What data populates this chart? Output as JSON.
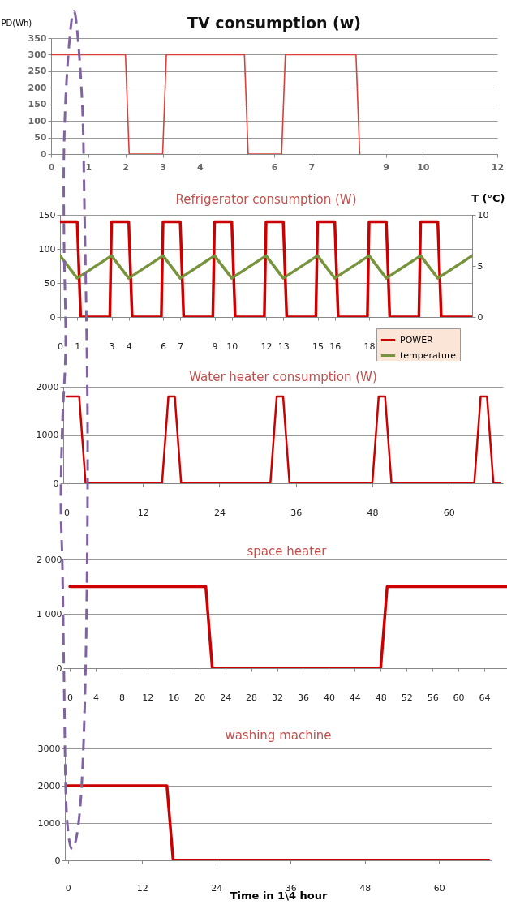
{
  "chart_data": [
    {
      "type": "line",
      "title": "TV consumption (w)",
      "ylabel": "PD(Wh)",
      "xlim": [
        0,
        12
      ],
      "xticks": [
        0,
        1,
        2,
        3,
        4,
        6,
        7,
        9,
        10,
        12
      ],
      "ylim": [
        0,
        350
      ],
      "yticks": [
        0,
        50,
        100,
        150,
        200,
        250,
        300,
        350
      ],
      "grid": "y",
      "series": [
        {
          "color": "#d9403a",
          "x": [
            0,
            2,
            2.1,
            3,
            3.1,
            5.2,
            5.3,
            6.2,
            6.3,
            8.2,
            8.3
          ],
          "values": [
            300,
            300,
            0,
            0,
            300,
            300,
            0,
            0,
            300,
            300,
            0
          ]
        }
      ]
    },
    {
      "type": "line",
      "title": "Refrigerator consumption (W)",
      "y2label": "T (°C)",
      "xlim": [
        0,
        24
      ],
      "xticks": [
        0,
        1,
        3,
        4,
        6,
        7,
        9,
        10,
        12,
        13,
        15,
        16,
        18
      ],
      "ylim": [
        0,
        150
      ],
      "yticks": [
        0,
        50,
        100,
        150
      ],
      "y2lim": [
        0,
        10
      ],
      "y2ticks": [
        0,
        5,
        10
      ],
      "grid": "y",
      "legend": "bottom right",
      "series": [
        {
          "name": "POWER",
          "color": "#cc0000",
          "x": [
            0,
            1,
            1.2,
            2.9,
            3,
            4,
            4.2,
            5.9,
            6,
            7,
            7.2,
            8.9,
            9,
            10,
            10.2,
            11.9,
            12,
            13,
            13.2,
            14.9,
            15,
            16,
            16.2,
            17.9,
            18,
            19,
            19.2,
            20.9,
            21,
            22,
            22.2,
            24
          ],
          "values": [
            140,
            140,
            0,
            0,
            140,
            140,
            0,
            0,
            140,
            140,
            0,
            0,
            140,
            140,
            0,
            0,
            140,
            140,
            0,
            0,
            140,
            140,
            0,
            0,
            140,
            140,
            0,
            0,
            140,
            140,
            0,
            0
          ]
        },
        {
          "name": "temperature",
          "color": "#77933c",
          "axis": "y2",
          "x": [
            0,
            1,
            3,
            4,
            6,
            7,
            9,
            10,
            12,
            13,
            15,
            16,
            18,
            19,
            21,
            22,
            24
          ],
          "values": [
            6,
            3.8,
            6,
            3.8,
            6,
            3.8,
            6,
            3.8,
            6,
            3.8,
            6,
            3.8,
            6,
            3.8,
            6,
            3.8,
            6
          ]
        }
      ]
    },
    {
      "type": "line",
      "title": "Water heater consumption (W)",
      "xlim": [
        -0.5,
        68.5
      ],
      "xticks": [
        0,
        12,
        24,
        36,
        48,
        60
      ],
      "ylim": [
        0,
        2000
      ],
      "yticks": [
        0,
        1000,
        2000
      ],
      "grid": "y",
      "series": [
        {
          "color": "#cc0000",
          "x": [
            0,
            2,
            3,
            15,
            16,
            17,
            18,
            32,
            33,
            34,
            35,
            48,
            49,
            50,
            51,
            64,
            65,
            66,
            67,
            68
          ],
          "values": [
            1800,
            1800,
            0,
            0,
            1800,
            1800,
            0,
            0,
            1800,
            1800,
            0,
            0,
            1800,
            1800,
            0,
            0,
            1800,
            1800,
            0,
            0
          ]
        }
      ]
    },
    {
      "type": "line",
      "title": "space heater",
      "xlim": [
        -0.5,
        67.5
      ],
      "xticks": [
        0,
        4,
        8,
        12,
        16,
        20,
        24,
        28,
        32,
        36,
        40,
        44,
        48,
        52,
        56,
        60,
        64
      ],
      "ylim": [
        0,
        2000
      ],
      "yticks": [
        0,
        {
          "value": 1000,
          "label": "1 000"
        },
        {
          "value": 2000,
          "label": "2 000"
        }
      ],
      "grid": "y",
      "series": [
        {
          "color": "#cc0000",
          "x": [
            0,
            21,
            22,
            48,
            49,
            67.5
          ],
          "values": [
            1500,
            1500,
            0,
            0,
            1500,
            1500
          ]
        }
      ]
    },
    {
      "type": "line",
      "title": "washing machine",
      "xlabel": "Time in 1\\4 hour",
      "xlim": [
        -0.5,
        68.5
      ],
      "xticks": [
        0,
        12,
        24,
        36,
        48,
        60
      ],
      "ylim": [
        0,
        3000
      ],
      "yticks": [
        0,
        1000,
        2000,
        3000
      ],
      "grid": "y",
      "series": [
        {
          "color": "#cc0000",
          "x": [
            0,
            16,
            17,
            68
          ],
          "values": [
            2000,
            2000,
            0,
            0
          ]
        }
      ]
    }
  ]
}
